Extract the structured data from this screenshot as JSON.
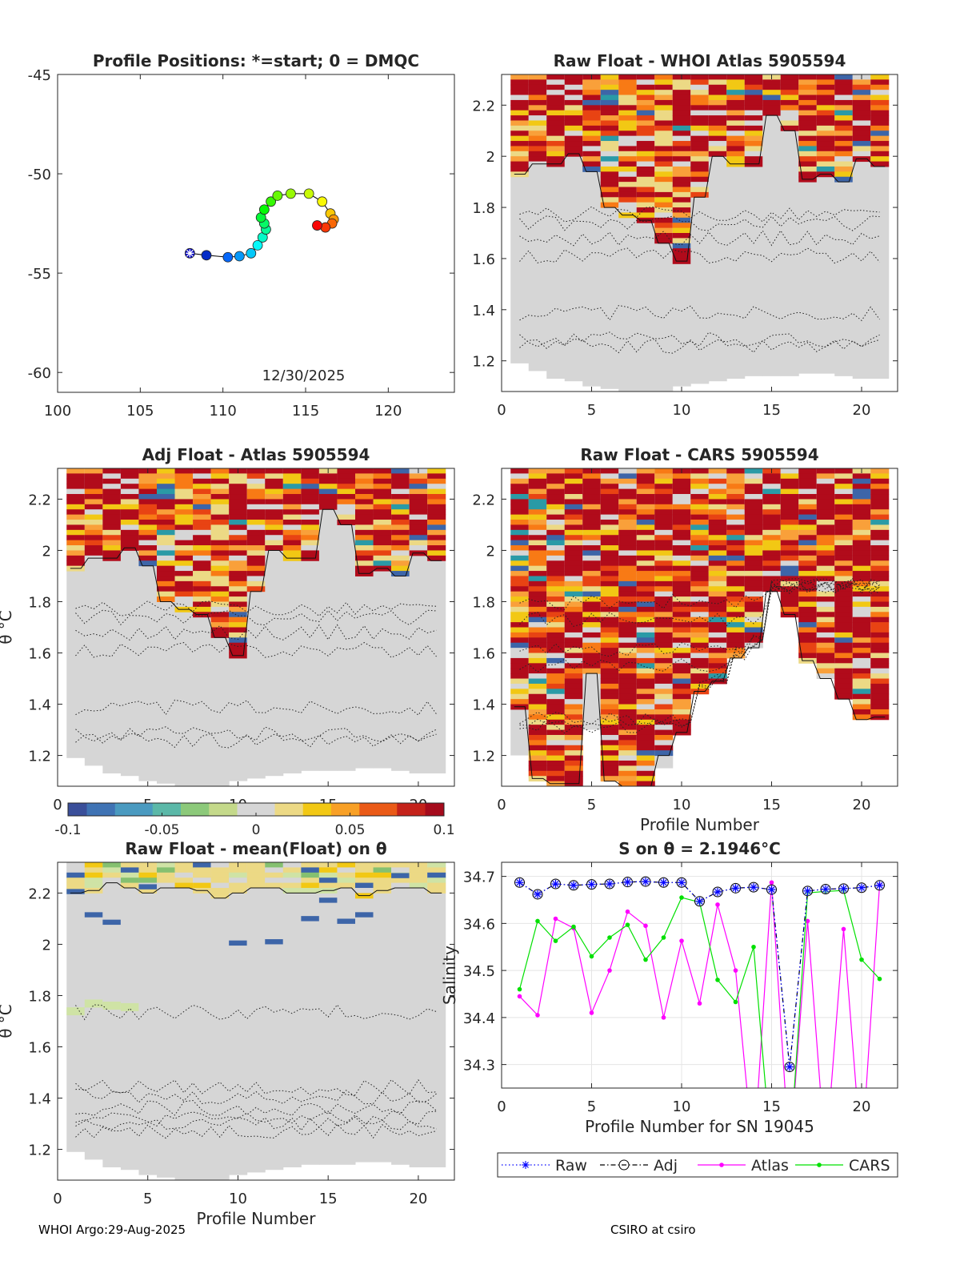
{
  "footer": {
    "left": "WHOI Argo:29-Aug-2025",
    "right": "CSIRO at csiro"
  },
  "theta_label": "θ °C",
  "colors": {
    "sat_red": "#b10b1b",
    "orange_red": "#e84313",
    "orange": "#f87a15",
    "light_orange": "#f9a03a",
    "yellow": "#f2c814",
    "cream": "#ecd985",
    "gray": "#d6d6d6",
    "light_green": "#cfe3a5",
    "green": "#85c070",
    "blue": "#3d65a8",
    "teal": "#2a9aa6",
    "raw_blue": "#0000ff",
    "atlas_magenta": "#ff00ff",
    "cars_green": "#00e000"
  },
  "colorbar": {
    "ticks": [
      "-0.1",
      "-0.05",
      "0",
      "0.05",
      "0.1"
    ],
    "min": -0.1,
    "max": 0.1
  },
  "chart_data": [
    {
      "id": "positions",
      "type": "scatter",
      "title": "Profile Positions: *=start; 0 = DMQC",
      "date_label": "12/30/2025",
      "xlim": [
        100,
        124
      ],
      "ylim": [
        -61,
        -45
      ],
      "xticks": [
        100,
        105,
        110,
        115,
        120
      ],
      "yticks": [
        -45,
        -50,
        -55,
        -60
      ],
      "x": [
        108.0,
        109.0,
        110.3,
        111.0,
        111.7,
        112.1,
        112.4,
        112.6,
        112.5,
        112.3,
        112.5,
        112.9,
        113.3,
        114.1,
        115.2,
        116.0,
        116.5,
        116.7,
        116.6,
        116.2,
        115.7
      ],
      "y": [
        -54.0,
        -54.1,
        -54.2,
        -54.15,
        -54.0,
        -53.6,
        -53.2,
        -52.8,
        -52.5,
        -52.2,
        -51.8,
        -51.4,
        -51.1,
        -51.0,
        -51.0,
        -51.4,
        -52.0,
        -52.3,
        -52.5,
        -52.7,
        -52.6
      ]
    },
    {
      "id": "raw_atlas",
      "type": "heatmap",
      "title": "Raw Float - WHOI Atlas  5905594",
      "xlim": [
        0,
        22
      ],
      "ylim": [
        1.08,
        2.32
      ],
      "xticks": [
        0,
        5,
        10,
        15,
        20
      ],
      "yticks": [
        1.2,
        1.4,
        1.6,
        1.8,
        2,
        2.2
      ],
      "columns": 21,
      "bottom": [
        1.19,
        1.16,
        1.13,
        1.12,
        1.1,
        1.09,
        1.08,
        1.08,
        1.08,
        1.1,
        1.11,
        1.12,
        1.13,
        1.14,
        1.14,
        1.14,
        1.15,
        1.15,
        1.14,
        1.13,
        1.13
      ],
      "anomaly_bottom": [
        1.93,
        1.97,
        1.97,
        2.01,
        1.94,
        1.8,
        1.77,
        1.75,
        1.66,
        1.59,
        1.84,
        2.0,
        1.97,
        1.97,
        2.16,
        2.1,
        1.91,
        1.93,
        1.9,
        1.99,
        1.96
      ],
      "column_fill": "anomaly"
    },
    {
      "id": "adj_atlas",
      "type": "heatmap",
      "title": "Adj Float - Atlas  5905594",
      "ylabel": "θ °C",
      "xlim": [
        0,
        22
      ],
      "ylim": [
        1.08,
        2.32
      ],
      "xticks": [
        0,
        5,
        10,
        15,
        20
      ],
      "yticks": [
        1.2,
        1.4,
        1.6,
        1.8,
        2,
        2.2
      ],
      "columns": 21,
      "bottom": [
        1.19,
        1.16,
        1.13,
        1.12,
        1.1,
        1.09,
        1.08,
        1.08,
        1.08,
        1.1,
        1.11,
        1.12,
        1.13,
        1.14,
        1.14,
        1.14,
        1.15,
        1.15,
        1.14,
        1.13,
        1.13
      ],
      "anomaly_bottom": [
        1.93,
        1.97,
        1.97,
        2.01,
        1.94,
        1.8,
        1.77,
        1.75,
        1.66,
        1.59,
        1.84,
        2.0,
        1.97,
        1.97,
        2.16,
        2.1,
        1.91,
        1.93,
        1.9,
        1.99,
        1.96
      ],
      "column_fill": "anomaly"
    },
    {
      "id": "raw_cars",
      "type": "heatmap",
      "title": "Raw Float - CARS  5905594",
      "xlabel": "Profile Number",
      "xlim": [
        0,
        22
      ],
      "ylim": [
        1.08,
        2.32
      ],
      "xticks": [
        0,
        5,
        10,
        15,
        20
      ],
      "yticks": [
        1.2,
        1.4,
        1.6,
        1.8,
        2,
        2.2
      ],
      "columns": 21,
      "bottom": [
        1.2,
        1.11,
        1.09,
        1.09,
        1.3,
        1.1,
        1.08,
        1.08,
        1.15,
        1.29,
        1.45,
        1.49,
        1.58,
        1.62,
        1.84,
        1.75,
        1.57,
        1.5,
        1.42,
        1.34,
        1.35
      ],
      "anomaly_bottom": [
        1.39,
        1.11,
        1.09,
        1.09,
        1.52,
        1.1,
        1.08,
        1.08,
        1.2,
        1.29,
        1.45,
        1.49,
        1.58,
        1.62,
        1.84,
        1.75,
        1.57,
        1.5,
        1.42,
        1.34,
        1.35
      ],
      "column_fill": "anomaly"
    },
    {
      "id": "raw_mean",
      "type": "heatmap",
      "title": "Raw Float - mean(Float) on θ",
      "xlabel": "Profile Number",
      "ylabel": "θ °C",
      "xlim": [
        0,
        22
      ],
      "ylim": [
        1.08,
        2.32
      ],
      "xticks": [
        0,
        5,
        10,
        15,
        20
      ],
      "yticks": [
        1.2,
        1.4,
        1.6,
        1.8,
        2,
        2.2
      ],
      "columns": 21,
      "bottom": [
        1.19,
        1.16,
        1.13,
        1.12,
        1.1,
        1.09,
        1.08,
        1.08,
        1.08,
        1.1,
        1.11,
        1.12,
        1.13,
        1.14,
        1.14,
        1.14,
        1.15,
        1.15,
        1.14,
        1.13,
        1.13
      ],
      "anomaly_bottom": [
        2.2,
        2.21,
        2.24,
        2.22,
        2.2,
        2.22,
        2.22,
        2.21,
        2.18,
        2.2,
        2.22,
        2.22,
        2.2,
        2.2,
        2.21,
        2.22,
        2.19,
        2.21,
        2.22,
        2.22,
        2.2
      ],
      "column_fill": "near_zero"
    },
    {
      "id": "salinity",
      "type": "line",
      "title": "S on θ = 2.1946°C",
      "xlabel": "Profile Number for SN 19045",
      "ylabel": "Salinity",
      "xlim": [
        0,
        22
      ],
      "ylim": [
        34.25,
        34.73
      ],
      "xticks": [
        0,
        5,
        10,
        15,
        20
      ],
      "yticks": [
        34.3,
        34.4,
        34.5,
        34.6,
        34.7
      ],
      "x": [
        1,
        2,
        3,
        4,
        5,
        6,
        7,
        8,
        9,
        10,
        11,
        12,
        13,
        14,
        15,
        16,
        17,
        18,
        19,
        20,
        21
      ],
      "series": [
        {
          "name": "Raw",
          "style": "dotted",
          "marker": "star",
          "values": [
            34.687,
            34.662,
            34.684,
            34.681,
            34.683,
            34.684,
            34.688,
            34.689,
            34.687,
            34.687,
            34.647,
            34.667,
            34.675,
            34.677,
            34.672,
            34.295,
            34.669,
            34.673,
            34.674,
            34.676,
            34.681
          ]
        },
        {
          "name": "Adj",
          "style": "dashdot",
          "marker": "circle",
          "values": [
            34.687,
            34.662,
            34.684,
            34.681,
            34.683,
            34.684,
            34.688,
            34.689,
            34.687,
            34.687,
            34.647,
            34.667,
            34.675,
            34.677,
            34.672,
            34.295,
            34.669,
            34.673,
            34.674,
            34.676,
            34.681
          ]
        },
        {
          "name": "Atlas",
          "style": "solid",
          "marker": "dot",
          "values": [
            34.445,
            34.405,
            34.61,
            34.59,
            34.41,
            34.5,
            34.625,
            34.595,
            34.4,
            34.563,
            34.43,
            34.64,
            34.5,
            34.1,
            34.687,
            34.1,
            34.605,
            34.1,
            34.588,
            34.1,
            34.682
          ]
        },
        {
          "name": "CARS",
          "style": "solid",
          "marker": "dot",
          "values": [
            34.46,
            34.605,
            34.563,
            34.593,
            34.53,
            34.57,
            34.597,
            34.523,
            34.57,
            34.655,
            34.645,
            34.48,
            34.433,
            34.55,
            34.1,
            34.1,
            34.665,
            34.668,
            34.67,
            34.523,
            34.482
          ]
        }
      ]
    }
  ]
}
